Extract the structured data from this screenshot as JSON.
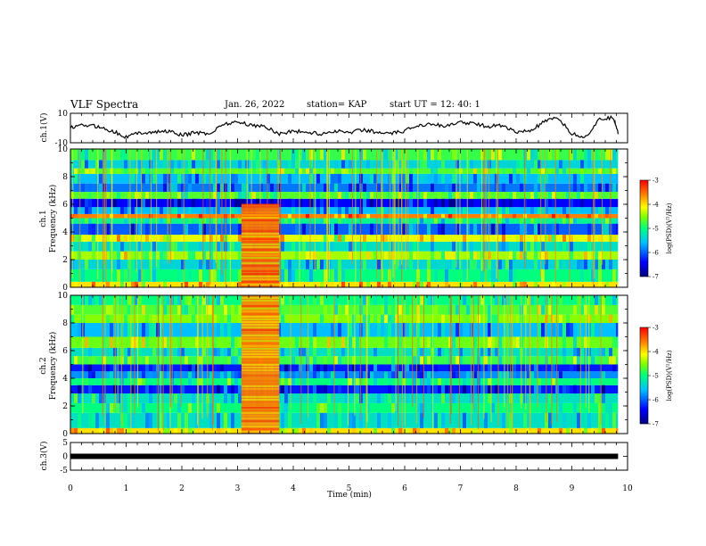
{
  "header": {
    "title": "VLF Spectra",
    "date": "Jan. 26, 2022",
    "station": "station= KAP",
    "start": "start  UT  =   12: 40: 1"
  },
  "colors": {
    "background": "#ffffff",
    "trace": "#000000",
    "colormap": [
      "#00007f",
      "#0000ff",
      "#00bfff",
      "#00ff7f",
      "#7fff00",
      "#ffff00",
      "#ff7f00",
      "#ff0000"
    ]
  },
  "chart_data": [
    {
      "type": "line",
      "panel": "ch1-waveform",
      "ylabel": "ch.1(V)",
      "ylim": [
        -10,
        10
      ],
      "yticks": [
        "10",
        "-10"
      ],
      "x": [
        0,
        0.25,
        0.5,
        0.75,
        1,
        1.25,
        1.5,
        1.75,
        2,
        2.25,
        2.5,
        2.75,
        3,
        3.25,
        3.5,
        3.75,
        4,
        4.25,
        4.5,
        4.75,
        5,
        5.25,
        5.5,
        5.75,
        6,
        6.25,
        6.5,
        6.75,
        7,
        7.25,
        7.5,
        7.75,
        8,
        8.25,
        8.5,
        8.75,
        9,
        9.25,
        9.5,
        9.75,
        9.83
      ],
      "y": [
        0,
        2,
        1,
        -2,
        -6,
        -3,
        -3,
        -2,
        -5,
        -3,
        -4,
        3,
        4,
        2,
        1,
        -4,
        -2,
        -3,
        -4,
        -2,
        -3,
        -1,
        -3,
        -4,
        -2,
        2,
        3,
        1,
        4,
        3,
        1,
        2,
        -3,
        -2,
        4,
        7,
        -4,
        -6,
        6,
        7,
        -3
      ]
    },
    {
      "type": "heatmap",
      "panel": "ch1-spectrogram",
      "ylabel": "ch.1\nFrequency (kHz)",
      "ylim": [
        0,
        10
      ],
      "yticks": [
        "0",
        "2",
        "4",
        "6",
        "8",
        "10"
      ],
      "colorbar": {
        "label": "log(PSD)(V²/Hz)",
        "range": [
          -7,
          -3
        ],
        "ticks": [
          "-3",
          "-4",
          "-5",
          "-6",
          "-7"
        ]
      },
      "bands_khz": [
        {
          "f0": 0.0,
          "f1": 0.4,
          "level": -4.0
        },
        {
          "f0": 0.4,
          "f1": 1.3,
          "level": -5.0
        },
        {
          "f0": 1.3,
          "f1": 2.0,
          "level": -5.4
        },
        {
          "f0": 2.0,
          "f1": 2.6,
          "level": -4.4
        },
        {
          "f0": 2.6,
          "f1": 3.3,
          "level": -5.3
        },
        {
          "f0": 3.3,
          "f1": 3.8,
          "level": -4.2
        },
        {
          "f0": 3.8,
          "f1": 4.6,
          "level": -6.0
        },
        {
          "f0": 4.6,
          "f1": 5.0,
          "level": -5.1
        },
        {
          "f0": 5.0,
          "f1": 5.3,
          "level": -3.6
        },
        {
          "f0": 5.3,
          "f1": 5.8,
          "level": -5.6
        },
        {
          "f0": 5.8,
          "f1": 6.4,
          "level": -6.4
        },
        {
          "f0": 6.4,
          "f1": 6.9,
          "level": -4.7
        },
        {
          "f0": 6.9,
          "f1": 7.5,
          "level": -5.9
        },
        {
          "f0": 7.5,
          "f1": 8.2,
          "level": -5.6
        },
        {
          "f0": 8.2,
          "f1": 8.6,
          "level": -4.7
        },
        {
          "f0": 8.6,
          "f1": 9.2,
          "level": -5.4
        },
        {
          "f0": 9.2,
          "f1": 10.0,
          "level": -4.8
        }
      ],
      "event": {
        "t0": 3.07,
        "t1": 3.75,
        "f0": 0.0,
        "f1": 6.0,
        "level": -3.5
      }
    },
    {
      "type": "heatmap",
      "panel": "ch2-spectrogram",
      "ylabel": "ch.2\nFrequency (kHz)",
      "ylim": [
        0,
        10
      ],
      "yticks": [
        "0",
        "2",
        "4",
        "6",
        "8",
        "10"
      ],
      "colorbar": {
        "label": "log(PSD)(V²/Hz)",
        "range": [
          -7,
          -3
        ],
        "ticks": [
          "-3",
          "-4",
          "-5",
          "-6",
          "-7"
        ]
      },
      "bands_khz": [
        {
          "f0": 0.0,
          "f1": 0.4,
          "level": -4.0
        },
        {
          "f0": 0.4,
          "f1": 1.5,
          "level": -5.3
        },
        {
          "f0": 1.5,
          "f1": 2.2,
          "level": -5.0
        },
        {
          "f0": 2.2,
          "f1": 2.9,
          "level": -5.3
        },
        {
          "f0": 2.9,
          "f1": 3.5,
          "level": -6.3
        },
        {
          "f0": 3.5,
          "f1": 4.0,
          "level": -5.0
        },
        {
          "f0": 4.0,
          "f1": 4.5,
          "level": -5.8
        },
        {
          "f0": 4.5,
          "f1": 5.0,
          "level": -6.3
        },
        {
          "f0": 5.0,
          "f1": 5.6,
          "level": -4.8
        },
        {
          "f0": 5.6,
          "f1": 6.2,
          "level": -5.3
        },
        {
          "f0": 6.2,
          "f1": 7.0,
          "level": -4.6
        },
        {
          "f0": 7.0,
          "f1": 8.0,
          "level": -5.6
        },
        {
          "f0": 8.0,
          "f1": 8.6,
          "level": -4.5
        },
        {
          "f0": 8.6,
          "f1": 9.3,
          "level": -4.7
        },
        {
          "f0": 9.3,
          "f1": 10.0,
          "level": -5.0
        }
      ],
      "event": {
        "t0": 3.07,
        "t1": 3.75,
        "f0": 0.0,
        "f1": 10.0,
        "level": -3.6
      }
    },
    {
      "type": "line",
      "panel": "ch3-waveform",
      "ylabel": "ch.3(V)",
      "ylim": [
        -5,
        5
      ],
      "yticks": [
        "5",
        "0",
        "-5"
      ],
      "x": [
        0,
        9.83
      ],
      "y": [
        0,
        0
      ]
    }
  ],
  "xaxis": {
    "label": "Time (min)",
    "range": [
      0,
      10
    ],
    "ticks": [
      "0",
      "1",
      "2",
      "3",
      "4",
      "5",
      "6",
      "7",
      "8",
      "9",
      "10"
    ]
  }
}
